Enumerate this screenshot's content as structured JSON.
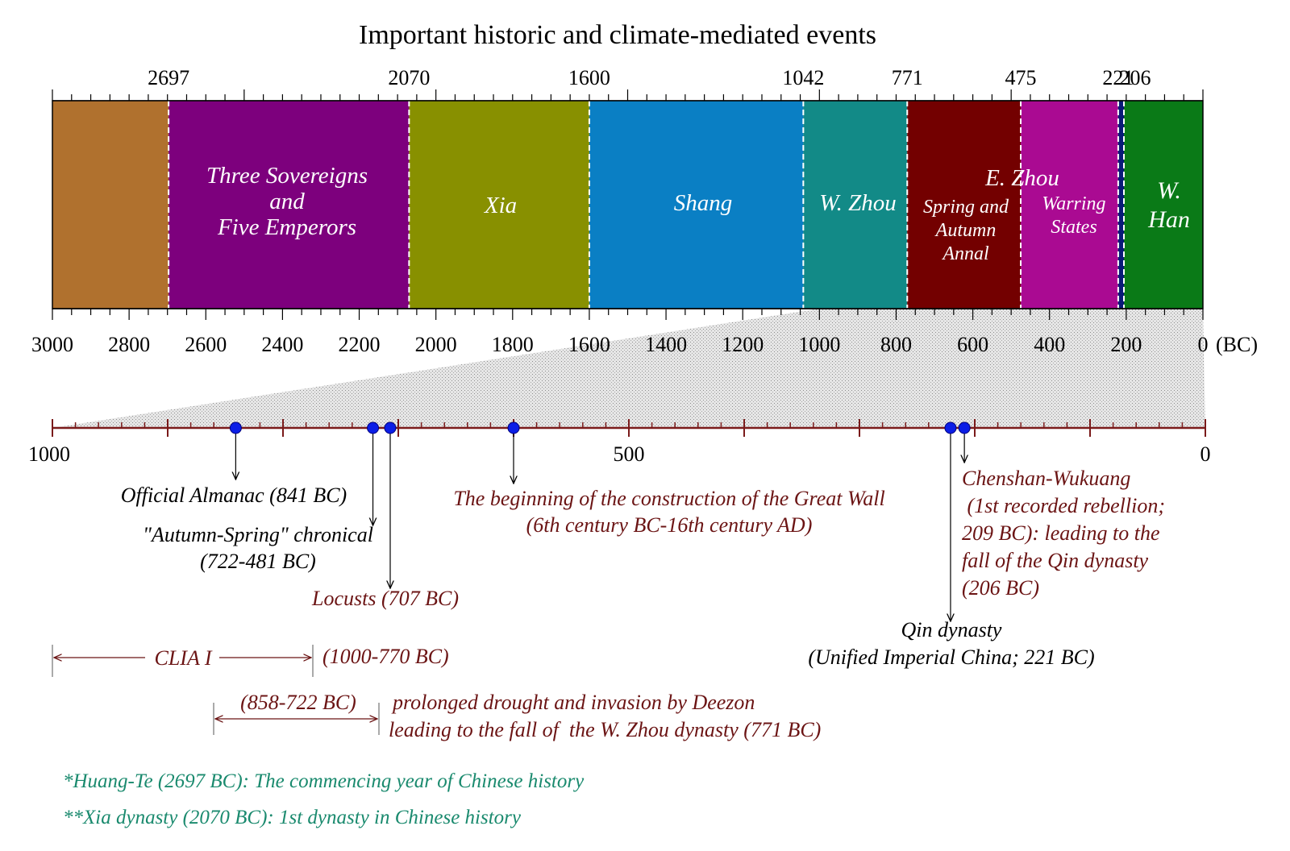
{
  "title": "Important historic and climate-mediated events",
  "top_year_labels": [
    {
      "value": 2697,
      "label": "2697"
    },
    {
      "value": 2070,
      "label": "2070"
    },
    {
      "value": 1600,
      "label": "1600"
    },
    {
      "value": 1042,
      "label": "1042"
    },
    {
      "value": 771,
      "label": "771"
    },
    {
      "value": 475,
      "label": "475"
    },
    {
      "value": 221,
      "label": "221"
    },
    {
      "value": 206,
      "label": "206"
    }
  ],
  "segments": [
    {
      "from": 3000,
      "to": 2697,
      "color": "#b0712e",
      "lines": []
    },
    {
      "from": 2697,
      "to": 2070,
      "color": "#7d007d",
      "lines": [
        "Three Sovereigns",
        "and",
        "Five Emperors"
      ]
    },
    {
      "from": 2070,
      "to": 1600,
      "color": "#889000",
      "lines": [
        "Xia"
      ]
    },
    {
      "from": 1600,
      "to": 1042,
      "color": "#0a7fc4",
      "lines": [
        "Shang"
      ]
    },
    {
      "from": 1042,
      "to": 771,
      "color": "#128a87",
      "lines": [
        "W. Zhou"
      ]
    },
    {
      "from": 771,
      "to": 475,
      "color": "#730000",
      "lines": [
        "Spring and",
        "Autumn",
        "Annal"
      ]
    },
    {
      "from": 475,
      "to": 221,
      "color": "#aa0a92",
      "lines": [
        "Warring",
        "States"
      ]
    },
    {
      "from": 221,
      "to": 206,
      "color": "#0a1a78",
      "lines": []
    },
    {
      "from": 206,
      "to": 0,
      "color": "#0a7a17",
      "lines": [
        "W.",
        "Han"
      ]
    }
  ],
  "group_label": "E. Zhou",
  "bottom_axis_ticks": [
    "3000",
    "2800",
    "2600",
    "2400",
    "2200",
    "2000",
    "1800",
    "1600",
    "1400",
    "1200",
    "1000",
    "800",
    "600",
    "400",
    "200",
    "0"
  ],
  "unit_label": "(BC)",
  "zoom_axis_ticks": [
    {
      "value": 1000,
      "label": "1000"
    },
    {
      "value": 500,
      "label": "500"
    },
    {
      "value": 0,
      "label": "0"
    }
  ],
  "events": [
    {
      "year": 841,
      "lines": [
        "Official Almanac (841 BC)"
      ],
      "style": "black"
    },
    {
      "year": 722,
      "lines": [
        "\"Autumn-Spring\" chronical",
        "(722-481 BC)"
      ],
      "style": "black"
    },
    {
      "year": 707,
      "lines": [
        "Locusts (707 BC)"
      ],
      "style": "red"
    },
    {
      "year": 600,
      "lines": [
        "The beginning of the construction of the Great Wall",
        "(6th century BC-16th century AD)"
      ],
      "style": "red"
    },
    {
      "year": 221,
      "lines": [
        "Qin dynasty",
        "(Unified Imperial China; 221 BC)"
      ],
      "style": "black"
    },
    {
      "year": 209,
      "lines": [
        "Chenshan-Wukuang",
        " (1st recorded rebellion;",
        "209 BC): leading to the",
        "fall of the Qin dynasty",
        "(206 BC)"
      ],
      "style": "red"
    }
  ],
  "clia": {
    "label": "CLIA I",
    "range_label": "(1000-770 BC)"
  },
  "drought": {
    "range_label": "(858-722 BC)",
    "lines": [
      "prolonged drought and invasion by Deezon",
      "leading to the fall of  the W. Zhou dynasty (771 BC)"
    ]
  },
  "notes": [
    "*Huang-Te (2697 BC): The commencing year of Chinese history",
    "**Xia dynasty (2070 BC): 1st dynasty in Chinese history"
  ],
  "colors": {
    "marker": "#0b1ee6",
    "zoom_axis": "#7a1a1a",
    "event_red": "#6b1414",
    "note_green": "#1a8a6e"
  }
}
